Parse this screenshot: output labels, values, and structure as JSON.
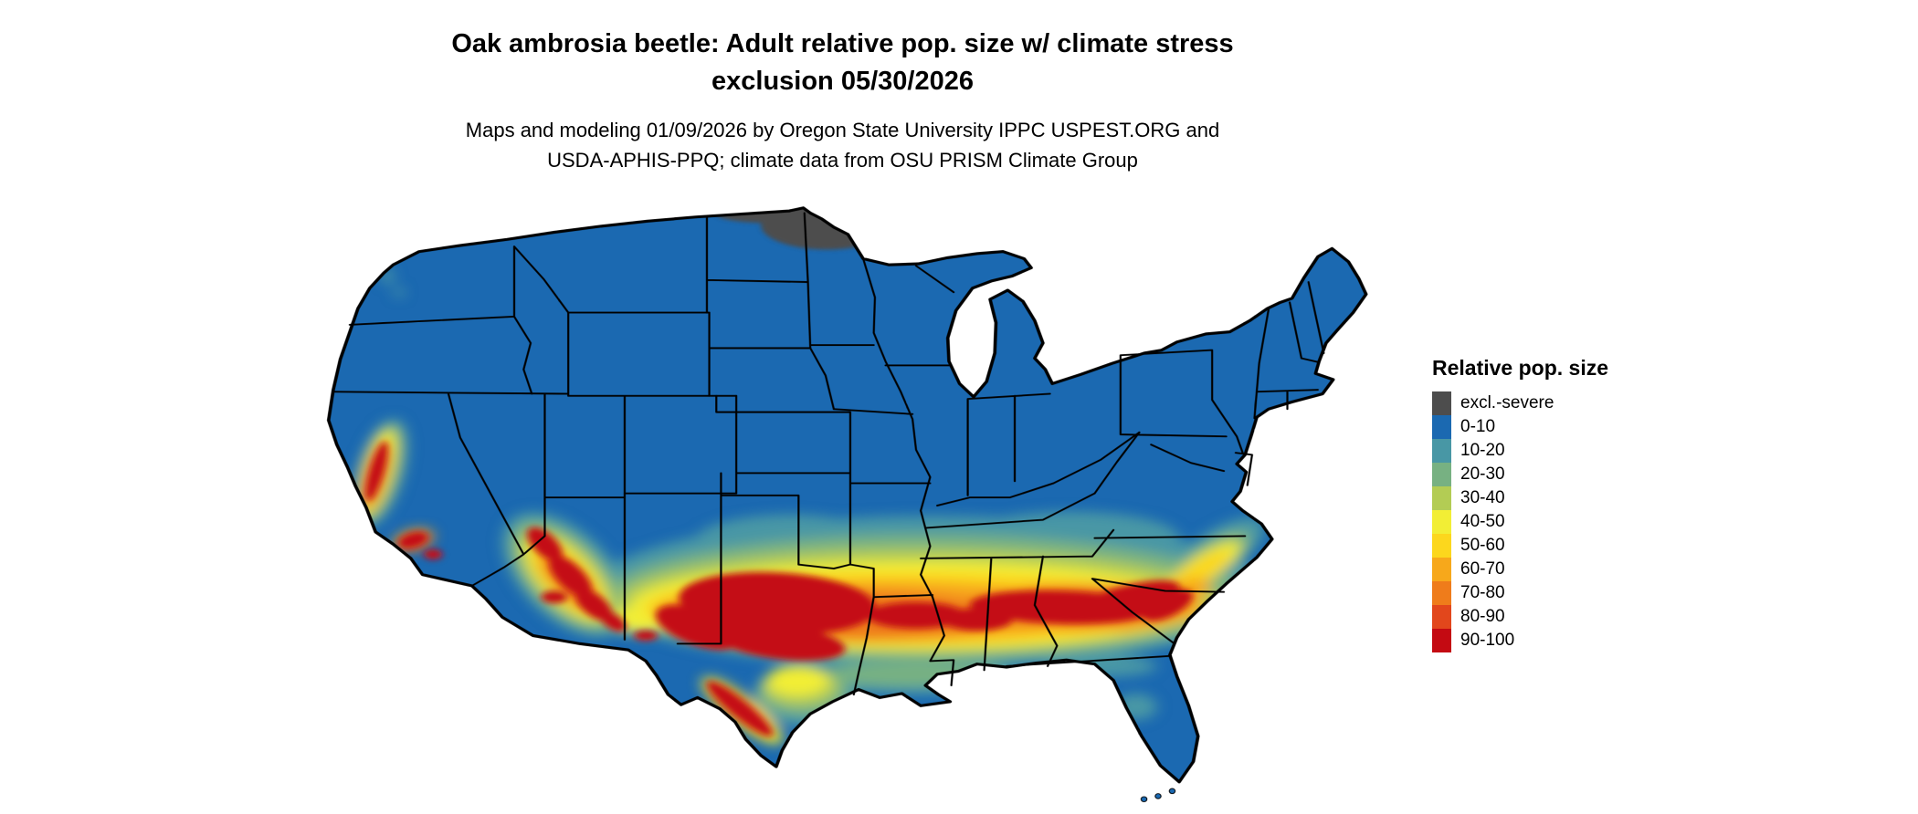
{
  "figure": {
    "title_line1": "Oak ambrosia beetle: Adult relative pop. size w/ climate stress",
    "title_line2": "exclusion 05/30/2026",
    "subtitle_line1": "Maps and modeling 01/09/2026 by Oregon State University IPPC USPEST.ORG and",
    "subtitle_line2": "USDA-APHIS-PPQ; climate data from OSU PRISM Climate Group"
  },
  "legend": {
    "title": "Relative pop. size",
    "items": [
      {
        "label": "excl.-severe",
        "color": "#4d4d4d"
      },
      {
        "label": "0-10",
        "color": "#1b69b1"
      },
      {
        "label": "10-20",
        "color": "#4897a5"
      },
      {
        "label": "20-30",
        "color": "#77b182"
      },
      {
        "label": "30-40",
        "color": "#b3cc54"
      },
      {
        "label": "40-50",
        "color": "#f2ee35"
      },
      {
        "label": "50-60",
        "color": "#fcd71d"
      },
      {
        "label": "60-70",
        "color": "#f7a81b"
      },
      {
        "label": "70-80",
        "color": "#ef7c1b"
      },
      {
        "label": "80-90",
        "color": "#e2471c"
      },
      {
        "label": "90-100",
        "color": "#c40a12"
      }
    ]
  }
}
